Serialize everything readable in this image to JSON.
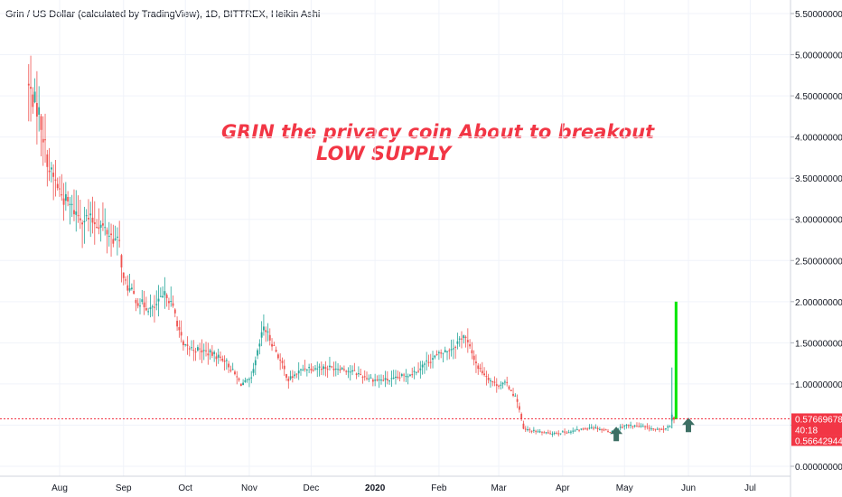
{
  "chart_data": {
    "type": "candlestick",
    "title": "Grin / US Dollar (calculated by TradingView), 1D, BITTREX, Heikin Ashi",
    "annotations": [
      "GRIN the privacy coin About to breakout",
      "LOW SUPPLY"
    ],
    "ylim": [
      0,
      5.6
    ],
    "y_ticks": [
      "5.50000000",
      "5.00000000",
      "4.50000000",
      "4.00000000",
      "3.50000000",
      "3.00000000",
      "2.50000000",
      "2.00000000",
      "1.50000000",
      "1.00000000",
      "0.50000000",
      "0.00000000"
    ],
    "y_tick_values": [
      5.5,
      5.0,
      4.5,
      4.0,
      3.5,
      3.0,
      2.5,
      2.0,
      1.5,
      1.0,
      0.5,
      0.0
    ],
    "x_ticks": [
      "Aug",
      "Sep",
      "Oct",
      "Nov",
      "Dec",
      "2020",
      "Feb",
      "Mar",
      "Apr",
      "May",
      "Jun",
      "Jul"
    ],
    "x_tick_dates": [
      "2019-08-01",
      "2019-09-01",
      "2019-10-01",
      "2019-11-01",
      "2019-12-01",
      "2020-01-01",
      "2020-02-01",
      "2020-03-01",
      "2020-04-01",
      "2020-05-01",
      "2020-06-01",
      "2020-07-01"
    ],
    "price_labels": {
      "last_price": "0.57669678",
      "countdown": "40:18",
      "low_price": "0.56642944"
    },
    "last_price_value": 0.57669678,
    "anchors": [
      {
        "date": "2019-07-17",
        "price": 4.6
      },
      {
        "date": "2019-07-22",
        "price": 4.3
      },
      {
        "date": "2019-07-27",
        "price": 3.6
      },
      {
        "date": "2019-08-03",
        "price": 3.25
      },
      {
        "date": "2019-08-10",
        "price": 3.05
      },
      {
        "date": "2019-08-20",
        "price": 2.95
      },
      {
        "date": "2019-08-30",
        "price": 2.7
      },
      {
        "date": "2019-09-01",
        "price": 2.25
      },
      {
        "date": "2019-09-08",
        "price": 2.0
      },
      {
        "date": "2019-09-15",
        "price": 1.9
      },
      {
        "date": "2019-09-22",
        "price": 2.1
      },
      {
        "date": "2019-09-26",
        "price": 1.85
      },
      {
        "date": "2019-09-30",
        "price": 1.45
      },
      {
        "date": "2019-10-10",
        "price": 1.4
      },
      {
        "date": "2019-10-20",
        "price": 1.3
      },
      {
        "date": "2019-10-28",
        "price": 1.0
      },
      {
        "date": "2019-11-02",
        "price": 1.05
      },
      {
        "date": "2019-11-08",
        "price": 1.7
      },
      {
        "date": "2019-11-14",
        "price": 1.4
      },
      {
        "date": "2019-11-20",
        "price": 1.05
      },
      {
        "date": "2019-11-28",
        "price": 1.2
      },
      {
        "date": "2019-12-15",
        "price": 1.2
      },
      {
        "date": "2020-01-01",
        "price": 1.05
      },
      {
        "date": "2020-01-10",
        "price": 1.05
      },
      {
        "date": "2020-01-20",
        "price": 1.15
      },
      {
        "date": "2020-01-28",
        "price": 1.3
      },
      {
        "date": "2020-02-08",
        "price": 1.45
      },
      {
        "date": "2020-02-13",
        "price": 1.6
      },
      {
        "date": "2020-02-20",
        "price": 1.2
      },
      {
        "date": "2020-02-28",
        "price": 1.0
      },
      {
        "date": "2020-03-05",
        "price": 1.0
      },
      {
        "date": "2020-03-10",
        "price": 0.8
      },
      {
        "date": "2020-03-13",
        "price": 0.45
      },
      {
        "date": "2020-03-25",
        "price": 0.4
      },
      {
        "date": "2020-04-05",
        "price": 0.42
      },
      {
        "date": "2020-04-15",
        "price": 0.48
      },
      {
        "date": "2020-04-25",
        "price": 0.42
      },
      {
        "date": "2020-05-01",
        "price": 0.5
      },
      {
        "date": "2020-05-10",
        "price": 0.48
      },
      {
        "date": "2020-05-18",
        "price": 0.44
      },
      {
        "date": "2020-05-23",
        "price": 0.48
      },
      {
        "date": "2020-05-24",
        "price": 0.62
      },
      {
        "date": "2020-05-25",
        "price": 0.57669678
      }
    ],
    "breakout_candle": {
      "date": "2020-05-26",
      "open": 0.57,
      "high": 2.0,
      "low": 0.55,
      "close": 2.0
    },
    "arrows": [
      {
        "date": "2020-04-27",
        "price": 0.37,
        "direction": "up"
      },
      {
        "date": "2020-06-01",
        "price": 0.48,
        "direction": "up"
      }
    ],
    "colors": {
      "up": "#26a69a",
      "down": "#ef5350",
      "breakout": "#00e600",
      "annotation": "#f23645",
      "arrow": "#3d6f64",
      "price_label_bg": "#f23645",
      "grid": "#f0f3fa",
      "axis_text": "#131722"
    }
  }
}
